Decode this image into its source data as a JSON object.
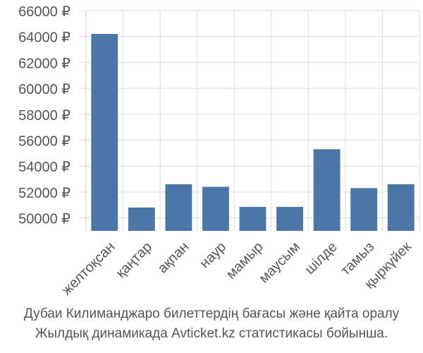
{
  "chart_data": {
    "type": "bar",
    "categories": [
      "желтоқсан",
      "қаңтар",
      "ақпан",
      "наур",
      "мамыр",
      "маусым",
      "шілде",
      "тамыз",
      "қыркүйек"
    ],
    "values": [
      64200,
      50800,
      52600,
      52400,
      50850,
      50850,
      55300,
      52300,
      52600
    ],
    "ylim": [
      49000,
      66000
    ],
    "yticks": [
      50000,
      52000,
      54000,
      56000,
      58000,
      60000,
      62000,
      64000,
      66000
    ],
    "ytick_labels": [
      "50000 ₽",
      "52000 ₽",
      "54000 ₽",
      "56000 ₽",
      "58000 ₽",
      "60000 ₽",
      "62000 ₽",
      "64000 ₽",
      "66000 ₽"
    ],
    "bar_color": "#4a76a8",
    "grid": true
  },
  "caption": {
    "line1": "Дубаи Килиманджаро билеттердің бағасы және қайта оралу",
    "line2": "Жылдық динамикада Avticket.kz статистикасы бойынша."
  }
}
